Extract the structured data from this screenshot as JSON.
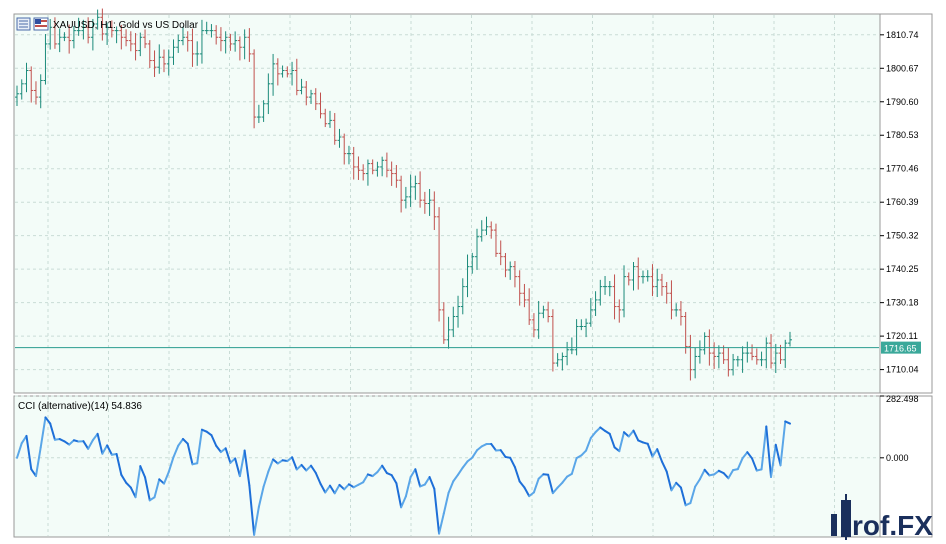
{
  "main_chart": {
    "symbol": "XAUUSD",
    "timeframe": "H1",
    "description": "Gold vs US Dollar",
    "title_text": "XAUUSD, H1:  Gold vs US Dollar",
    "price_ticks": [
      "1810.74",
      "1800.67",
      "1790.60",
      "1780.53",
      "1770.46",
      "1760.39",
      "1750.32",
      "1740.25",
      "1730.18",
      "1720.11",
      "1710.04"
    ],
    "current_price_label": "1716.65",
    "colors": {
      "up": "#1b8a7a",
      "down": "#c0504d",
      "grid": "#c9dcd6",
      "bg": "#f3fcf8",
      "price_line": "#2a9d8f",
      "label_bg": "#3aa89a"
    }
  },
  "indicator": {
    "title_text": "CCI (alternative)(14) 54.836",
    "ticks": [
      "282.498",
      "0.000"
    ],
    "colors": {
      "strong": "#1e6fd8",
      "light": "#5aa6e8"
    }
  },
  "chart_data": [
    {
      "type": "bar",
      "title": "XAUUSD, H1:  Gold vs US Dollar",
      "ylim": [
        1703.0,
        1817.0
      ],
      "closes": [
        1793,
        1796,
        1800,
        1794,
        1792,
        1797,
        1808,
        1813,
        1808,
        1810,
        1810,
        1809,
        1812,
        1812,
        1813,
        1810,
        1814,
        1816,
        1811,
        1813,
        1812,
        1812,
        1810,
        1809,
        1808,
        1806,
        1810,
        1808,
        1803,
        1801,
        1804,
        1802,
        1804,
        1807,
        1809,
        1810,
        1809,
        1805,
        1805,
        1812,
        1812,
        1812,
        1810,
        1809,
        1810,
        1808,
        1809,
        1807,
        1810,
        1805,
        1786,
        1786,
        1790,
        1796,
        1802,
        1799,
        1800,
        1799,
        1800,
        1794,
        1795,
        1792,
        1793,
        1790,
        1787,
        1784,
        1785,
        1779,
        1780,
        1775,
        1775,
        1771,
        1770,
        1769,
        1772,
        1770,
        1771,
        1773,
        1770,
        1769,
        1767,
        1761,
        1762,
        1765,
        1766,
        1761,
        1760,
        1761,
        1756,
        1728,
        1719,
        1722,
        1726,
        1729,
        1735,
        1741,
        1744,
        1750,
        1752,
        1753,
        1752,
        1745,
        1744,
        1740,
        1741,
        1738,
        1733,
        1731,
        1725,
        1722,
        1727,
        1728,
        1726,
        1712,
        1713,
        1714,
        1716,
        1716,
        1723,
        1723,
        1724,
        1728,
        1731,
        1735,
        1735,
        1735,
        1729,
        1728,
        1738,
        1737,
        1741,
        1738,
        1738,
        1738,
        1735,
        1737,
        1735,
        1733,
        1728,
        1728,
        1726,
        1717,
        1710,
        1714,
        1716,
        1720,
        1715,
        1714,
        1715,
        1713,
        1710,
        1713,
        1713,
        1715,
        1715,
        1714,
        1713,
        1713,
        1718,
        1712,
        1715,
        1713,
        1718,
        1719
      ],
      "current_price": 1716.65
    },
    {
      "type": "line",
      "title": "CCI (alternative)(14) 54.836",
      "ylim": [
        -362,
        282.498
      ],
      "last_value": 54.836
    }
  ]
}
